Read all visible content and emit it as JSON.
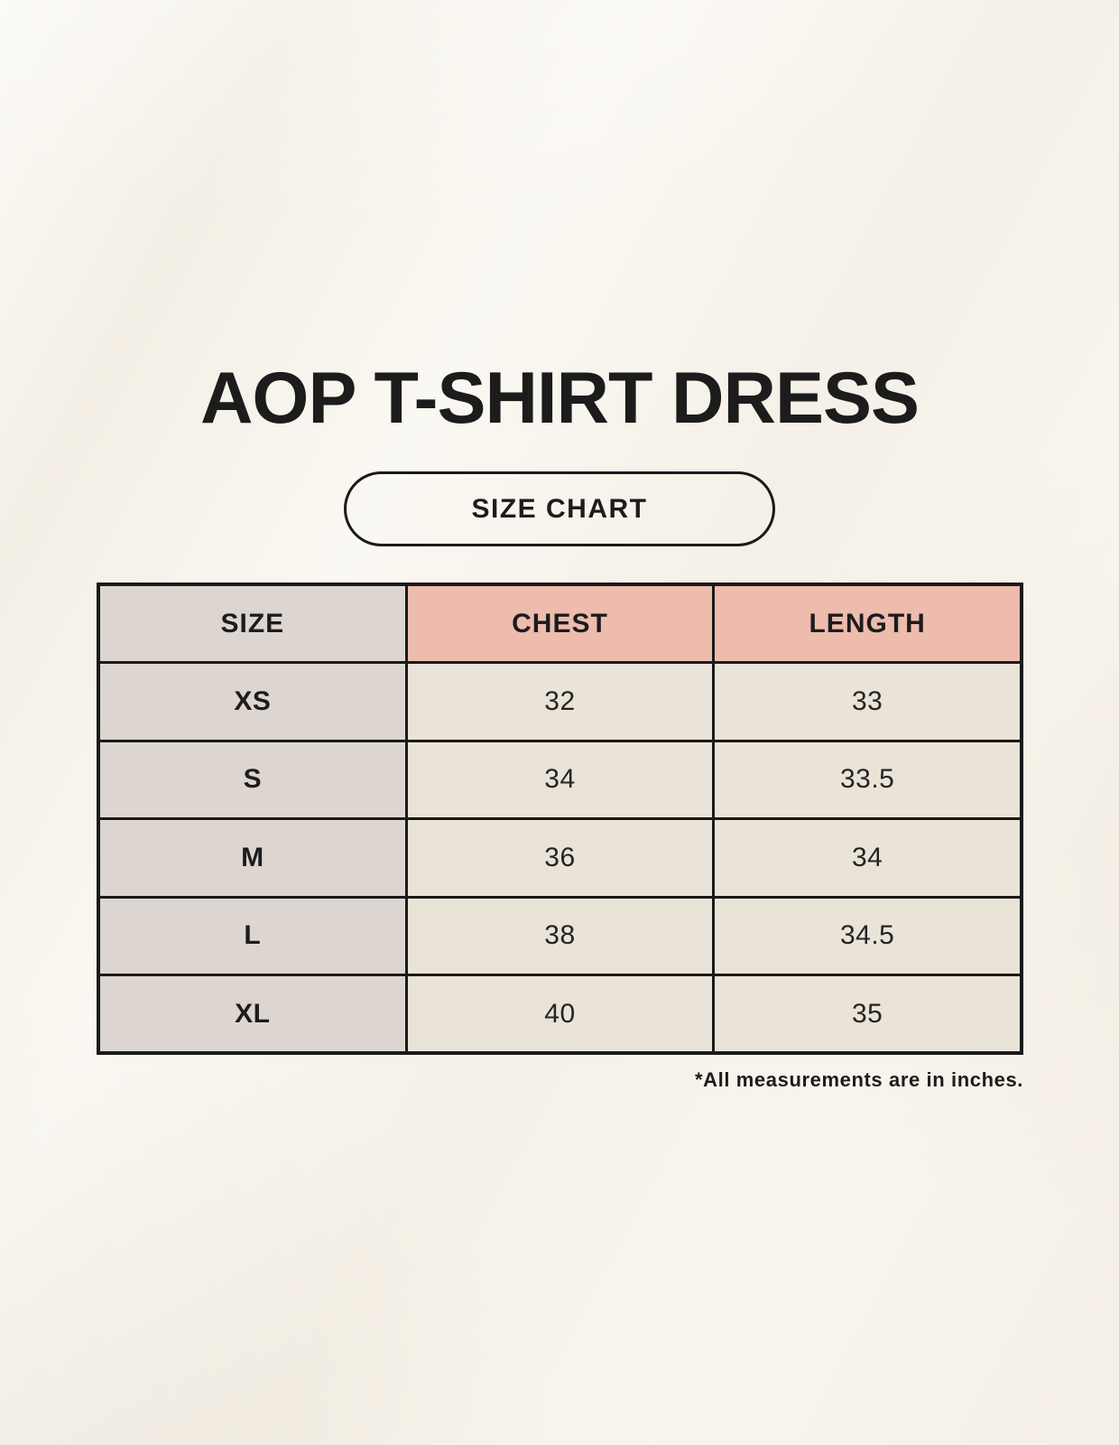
{
  "colors": {
    "background": "#f8f4ec",
    "header_pink": "#edbcad",
    "cell_gray": "#ddd6d0",
    "cell_beige": "#eae3d7",
    "line": "#1a1a1a",
    "text": "#1c1c1c"
  },
  "chart_data": {
    "type": "table",
    "title": "AOP T-SHIRT DRESS",
    "badge": "SIZE CHART",
    "columns": [
      "SIZE",
      "CHEST",
      "LENGTH"
    ],
    "rows": [
      {
        "size": "XS",
        "chest": "32",
        "length": "33"
      },
      {
        "size": "S",
        "chest": "34",
        "length": "33.5"
      },
      {
        "size": "M",
        "chest": "36",
        "length": "34"
      },
      {
        "size": "L",
        "chest": "38",
        "length": "34.5"
      },
      {
        "size": "XL",
        "chest": "40",
        "length": "35"
      }
    ],
    "footnote": "*All measurements are in inches."
  }
}
